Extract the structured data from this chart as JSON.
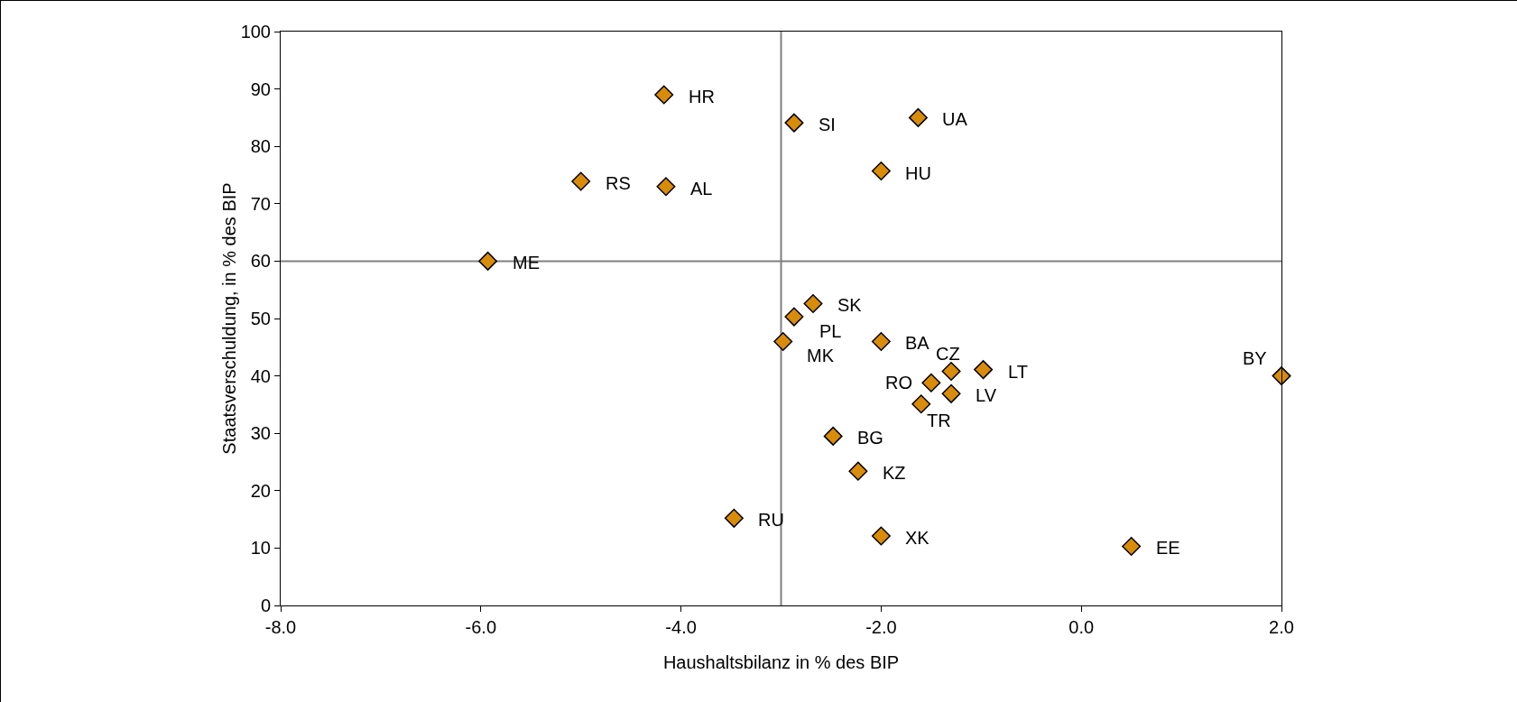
{
  "chart_data": {
    "type": "scatter",
    "xlabel": "Haushaltsbilanz in % des BIP",
    "ylabel": "Staatsverschuldung, in % des BIP",
    "series": [
      {
        "color": "#d98c0a",
        "x": [
          -4.17,
          -2.87,
          -1.63,
          -2.0,
          -5.0,
          -4.15,
          -5.93,
          -2.68,
          -2.87,
          -2.98,
          -2.0,
          -1.3,
          -0.98,
          -1.5,
          -1.3,
          -1.6,
          -2.48,
          -2.23,
          -3.47,
          -2.0,
          0.5,
          2.0
        ],
        "values": [
          89.0,
          84.1,
          85.0,
          75.7,
          73.9,
          73.0,
          60.0,
          52.6,
          50.3,
          46.0,
          46.0,
          40.8,
          41.1,
          38.8,
          36.9,
          35.1,
          29.5,
          23.4,
          15.2,
          12.1,
          10.3,
          40.0
        ]
      }
    ],
    "marker": "diamond",
    "grid": false,
    "legend": false,
    "xlim": [
      -8,
      2
    ],
    "ylim": [
      0,
      100
    ],
    "xticks": [
      {
        "value": -8,
        "label": "-8.0"
      },
      {
        "value": -6,
        "label": "-6.0"
      },
      {
        "value": -4,
        "label": "-4.0"
      },
      {
        "value": -2,
        "label": "-2.0"
      },
      {
        "value": 0,
        "label": "0.0"
      },
      {
        "value": 2,
        "label": "2.0"
      }
    ],
    "yticks": [
      0,
      10,
      20,
      30,
      40,
      50,
      60,
      70,
      80,
      90,
      100
    ],
    "ref_lines": [
      {
        "axis": "x",
        "value": -3,
        "color": "#808080"
      },
      {
        "axis": "y",
        "value": 60,
        "color": "#808080"
      }
    ],
    "annotations": [
      {
        "text": "HR",
        "x": -4.17,
        "y": 89.0
      },
      {
        "text": "SI",
        "x": -2.87,
        "y": 84.1
      },
      {
        "text": "UA",
        "x": -1.63,
        "y": 85.0
      },
      {
        "text": "HU",
        "x": -2.0,
        "y": 75.7
      },
      {
        "text": "RS",
        "x": -5.0,
        "y": 73.9
      },
      {
        "text": "AL",
        "x": -4.15,
        "y": 73.0
      },
      {
        "text": "ME",
        "x": -5.93,
        "y": 60.0
      },
      {
        "text": "SK",
        "x": -2.68,
        "y": 52.6
      },
      {
        "text": "PL",
        "x": -2.87,
        "y": 50.3
      },
      {
        "text": "MK",
        "x": -2.98,
        "y": 46.0
      },
      {
        "text": "BA",
        "x": -2.0,
        "y": 46.0
      },
      {
        "text": "CZ",
        "x": -1.3,
        "y": 40.8
      },
      {
        "text": "LT",
        "x": -0.98,
        "y": 41.1
      },
      {
        "text": "RO",
        "x": -1.5,
        "y": 38.8
      },
      {
        "text": "LV",
        "x": -1.3,
        "y": 36.9
      },
      {
        "text": "TR",
        "x": -1.6,
        "y": 35.1
      },
      {
        "text": "BG",
        "x": -2.48,
        "y": 29.5
      },
      {
        "text": "KZ",
        "x": -2.23,
        "y": 23.4
      },
      {
        "text": "RU",
        "x": -3.47,
        "y": 15.2
      },
      {
        "text": "XK",
        "x": -2.0,
        "y": 12.1
      },
      {
        "text": "EE",
        "x": 0.5,
        "y": 10.3
      },
      {
        "text": "BY",
        "x": 2.0,
        "y": 40.0
      }
    ]
  }
}
